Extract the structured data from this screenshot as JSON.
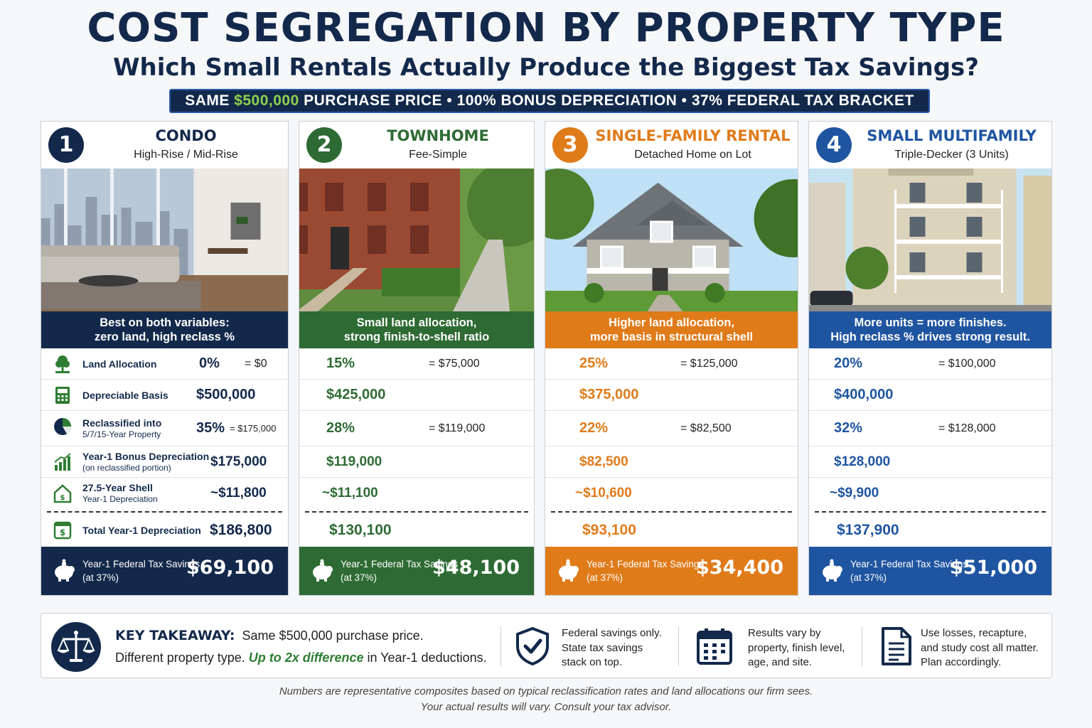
{
  "title": "COST SEGREGATION BY PROPERTY TYPE",
  "subtitle": "Which Small Rentals Actually Produce the Biggest Tax Savings?",
  "banner": {
    "pre": "SAME ",
    "highlight": "$500,000",
    "post": " PURCHASE PRICE • 100% BONUS DEPRECIATION • 37% FEDERAL TAX BRACKET"
  },
  "row_labels": {
    "land": "Land Allocation",
    "basis": "Depreciable Basis",
    "reclass_1": "Reclassified into",
    "reclass_2": "5/7/15-Year Property",
    "bonus_1": "Year-1 Bonus Depreciation",
    "bonus_2": "(on reclassified portion)",
    "shell_1": "27.5-Year Shell",
    "shell_2": "Year-1 Depreciation",
    "total": "Total Year-1 Depreciation"
  },
  "savings_label_1": "Year-1 Federal Tax Savings",
  "savings_label_2": "(at 37%)",
  "colors": {
    "condo": "#13294b",
    "townhome": "#2e6b34",
    "sfr": "#e07b1a",
    "multi": "#1f55a0"
  },
  "cards": [
    {
      "num": "1",
      "title": "CONDO",
      "sub": "High-Rise / Mid-Rise",
      "tag1": "Best on both variables:",
      "tag2": "zero land, high reclass %",
      "land_pct": "0%",
      "land_amt": "= $0",
      "basis": "$500,000",
      "reclass_pct": "35%",
      "reclass_amt": "= $175,000",
      "bonus": "$175,000",
      "shell": "~$11,800",
      "total": "$186,800",
      "savings": "$69,100"
    },
    {
      "num": "2",
      "title": "TOWNHOME",
      "sub": "Fee-Simple",
      "tag1": "Small land allocation,",
      "tag2": "strong finish-to-shell ratio",
      "land_pct": "15%",
      "land_amt": "= $75,000",
      "basis": "$425,000",
      "reclass_pct": "28%",
      "reclass_amt": "= $119,000",
      "bonus": "$119,000",
      "shell": "~$11,100",
      "total": "$130,100",
      "savings": "$48,100"
    },
    {
      "num": "3",
      "title": "SINGLE-FAMILY RENTAL",
      "sub": "Detached Home on Lot",
      "tag1": "Higher land allocation,",
      "tag2": "more basis in structural shell",
      "land_pct": "25%",
      "land_amt": "= $125,000",
      "basis": "$375,000",
      "reclass_pct": "22%",
      "reclass_amt": "= $82,500",
      "bonus": "$82,500",
      "shell": "~$10,600",
      "total": "$93,100",
      "savings": "$34,400"
    },
    {
      "num": "4",
      "title": "SMALL MULTIFAMILY",
      "sub": "Triple-Decker (3 Units)",
      "tag1": "More units = more finishes.",
      "tag2": "High reclass % drives strong result.",
      "land_pct": "20%",
      "land_amt": "= $100,000",
      "basis": "$400,000",
      "reclass_pct": "32%",
      "reclass_amt": "= $128,000",
      "bonus": "$128,000",
      "shell": "~$9,900",
      "total": "$137,900",
      "savings": "$51,000"
    }
  ],
  "takeaway": {
    "heading": "KEY TAKEAWAY:",
    "line1": "Same $500,000 purchase price.",
    "line2_pre": "Different property type. ",
    "line2_hl": "Up to 2x difference",
    "line2_post": " in Year-1 deductions.",
    "notes": [
      {
        "icon": "shield-check-icon",
        "l1": "Federal savings only.",
        "l2": "State tax savings",
        "l3": "stack on top."
      },
      {
        "icon": "calendar-icon",
        "l1": "Results vary by",
        "l2": "property, finish level,",
        "l3": "age, and site."
      },
      {
        "icon": "document-icon",
        "l1": "Use losses, recapture,",
        "l2": "and study cost all matter.",
        "l3": "Plan accordingly."
      }
    ]
  },
  "footnote_1": "Numbers are representative composites based on typical reclassification rates and land allocations our firm sees.",
  "footnote_2": "Your actual results will vary. Consult your tax advisor."
}
